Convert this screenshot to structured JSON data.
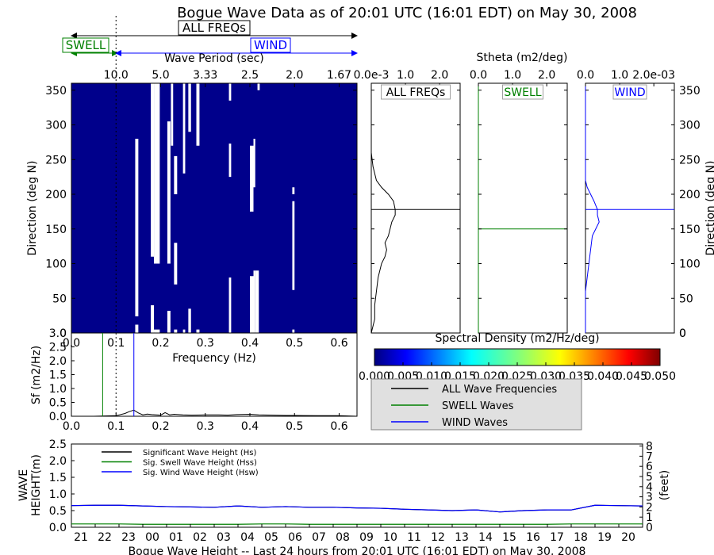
{
  "title": "Bogue Wave Data as of 20:01 UTC (16:01 EDT) on May 30, 2008",
  "top_annotations": {
    "all_freqs": "ALL FREQs",
    "swell": "SWELL",
    "wind": "WIND",
    "colors": {
      "all": "#000000",
      "swell": "#008000",
      "wind": "#0000ff"
    }
  },
  "colorbar": {
    "label": "Spectral Density (m2/Hz/deg)",
    "ticks": [
      "0.000",
      "0.005",
      "0.010",
      "0.015",
      "0.020",
      "0.025",
      "0.030",
      "0.035",
      "0.040",
      "0.045",
      "0.050"
    ],
    "range": [
      0.0,
      0.05
    ],
    "colormap": "jet"
  },
  "legend": {
    "items": [
      {
        "label": "ALL Wave Frequencies",
        "color": "#000000"
      },
      {
        "label": "SWELL Waves",
        "color": "#008000"
      },
      {
        "label": "WIND Waves",
        "color": "#0000ff"
      }
    ],
    "background": "#e0e0e0"
  },
  "chart_data": [
    {
      "name": "spectrum-heatmap",
      "type": "heatmap",
      "xlabel": "Frequency (Hz)",
      "ylabel": "Direction (deg N)",
      "top_xlabel": "Wave Period (sec)",
      "xlim": [
        0.0,
        0.64
      ],
      "ylim": [
        0,
        360
      ],
      "xticks": [
        0.0,
        0.1,
        0.2,
        0.3,
        0.4,
        0.5,
        0.6
      ],
      "xticklabels": [
        "0.0",
        "0.1",
        "0.2",
        "0.3",
        "0.4",
        "0.5",
        "0.6"
      ],
      "yticks": [
        0,
        50,
        100,
        150,
        200,
        250,
        300,
        350
      ],
      "top_ticks": [
        0.1,
        0.2,
        0.3,
        0.4,
        0.5,
        0.6
      ],
      "top_ticklabels": [
        "10.0",
        "5.0",
        "3.33",
        "2.5",
        "2.0",
        "1.67"
      ],
      "background_color": "#00008b",
      "separation_freq": 0.1,
      "gaps": [
        {
          "f": [
            0.143,
            0.15
          ],
          "d": [
            [
              0,
              12
            ],
            [
              24,
              280
            ]
          ]
        },
        {
          "f": [
            0.178,
            0.185
          ],
          "d": [
            [
              0,
              40
            ],
            [
              110,
              360
            ]
          ]
        },
        {
          "f": [
            0.185,
            0.198
          ],
          "d": [
            [
              0,
              5
            ],
            [
              100,
              360
            ]
          ]
        },
        {
          "f": [
            0.215,
            0.222
          ],
          "d": [
            [
              0,
              32
            ],
            [
              100,
              305
            ]
          ]
        },
        {
          "f": [
            0.223,
            0.228
          ],
          "d": [
            [
              270,
              360
            ]
          ]
        },
        {
          "f": [
            0.23,
            0.237
          ],
          "d": [
            [
              0,
              5
            ],
            [
              70,
              130
            ],
            [
              200,
              255
            ]
          ]
        },
        {
          "f": [
            0.25,
            0.255
          ],
          "d": [
            [
              0,
              5
            ],
            [
              230,
              360
            ]
          ]
        },
        {
          "f": [
            0.262,
            0.268
          ],
          "d": [
            [
              0,
              35
            ],
            [
              290,
              360
            ]
          ]
        },
        {
          "f": [
            0.28,
            0.287
          ],
          "d": [
            [
              0,
              5
            ],
            [
              270,
              360
            ]
          ]
        },
        {
          "f": [
            0.353,
            0.358
          ],
          "d": [
            [
              0,
              80
            ],
            [
              225,
              273
            ],
            [
              335,
              360
            ]
          ]
        },
        {
          "f": [
            0.4,
            0.408
          ],
          "d": [
            [
              0,
              82
            ],
            [
              175,
              270
            ]
          ]
        },
        {
          "f": [
            0.408,
            0.412
          ],
          "d": [
            [
              0,
              90
            ],
            [
              210,
              280
            ]
          ]
        },
        {
          "f": [
            0.412,
            0.42
          ],
          "d": [
            [
              0,
              90
            ]
          ]
        },
        {
          "f": [
            0.417,
            0.422
          ],
          "d": [
            [
              350,
              360
            ]
          ]
        },
        {
          "f": [
            0.495,
            0.5
          ],
          "d": [
            [
              0,
              5
            ],
            [
              62,
              190
            ],
            [
              200,
              210
            ]
          ]
        }
      ]
    },
    {
      "name": "all-freqs-direction",
      "type": "line",
      "title": "ALL FREQs",
      "xlim": [
        0.0,
        2.6
      ],
      "ylim": [
        0,
        360
      ],
      "xticklabels": [
        "0.0e-3",
        "1.0",
        "2.0"
      ],
      "xticks": [
        0.0,
        1.0,
        2.0
      ],
      "direction": [
        0,
        20,
        40,
        60,
        80,
        100,
        110,
        120,
        130,
        140,
        150,
        160,
        170,
        178,
        190,
        200,
        210,
        220,
        240,
        260,
        290,
        320,
        360
      ],
      "values": [
        0.0,
        0.1,
        0.1,
        0.15,
        0.2,
        0.3,
        0.4,
        0.45,
        0.4,
        0.5,
        0.55,
        0.6,
        0.7,
        0.7,
        0.65,
        0.5,
        0.3,
        0.15,
        0.05,
        0.0,
        0.0,
        0.0,
        0.0
      ],
      "mean_direction": 178,
      "color": "#000000"
    },
    {
      "name": "swell-direction",
      "type": "line",
      "title": "SWELL",
      "xlim": [
        0.0,
        2.6
      ],
      "ylim": [
        0,
        360
      ],
      "xticklabels": [
        "0.0",
        "1.0",
        "2.0"
      ],
      "xticks": [
        0.0,
        1.0,
        2.0
      ],
      "direction": [
        0,
        360
      ],
      "values": [
        0.0,
        0.0
      ],
      "mean_direction": 150,
      "color": "#008000"
    },
    {
      "name": "wind-direction",
      "type": "line",
      "title": "WIND",
      "xlim": [
        0.0,
        2.6
      ],
      "ylim": [
        0,
        360
      ],
      "xticklabels": [
        "0.0",
        "1.0",
        "2.0e-03"
      ],
      "xticks": [
        0.0,
        1.0,
        2.0
      ],
      "direction": [
        0,
        60,
        80,
        100,
        120,
        140,
        150,
        160,
        170,
        178,
        190,
        200,
        210,
        220,
        240,
        280,
        320,
        360
      ],
      "values": [
        0.0,
        0.0,
        0.05,
        0.1,
        0.15,
        0.2,
        0.3,
        0.4,
        0.35,
        0.35,
        0.25,
        0.15,
        0.05,
        0.0,
        0.0,
        0.0,
        0.0,
        0.0
      ],
      "mean_direction": 178,
      "color": "#0000ff"
    },
    {
      "name": "frequency-spectrum",
      "type": "line",
      "xlabel": "Frequency (Hz)",
      "ylabel": "Sf (m2/Hz)",
      "xlim": [
        0.0,
        0.64
      ],
      "ylim": [
        0.0,
        3.0
      ],
      "xticks": [
        0.0,
        0.1,
        0.2,
        0.3,
        0.4,
        0.5,
        0.6
      ],
      "xticklabels": [
        "0.0",
        "0.1",
        "0.2",
        "0.3",
        "0.4",
        "0.5",
        "0.6"
      ],
      "yticks": [
        0.0,
        0.5,
        1.0,
        1.5,
        2.0,
        2.5,
        3.0
      ],
      "yticklabels": [
        "0.0",
        "0.5",
        "1.0",
        "1.5",
        "2.0",
        "2.5",
        "3.0"
      ],
      "x": [
        0.0,
        0.05,
        0.1,
        0.12,
        0.13,
        0.14,
        0.15,
        0.16,
        0.17,
        0.18,
        0.19,
        0.2,
        0.21,
        0.22,
        0.23,
        0.25,
        0.27,
        0.3,
        0.33,
        0.35,
        0.37,
        0.4,
        0.42,
        0.45,
        0.48,
        0.5,
        0.55,
        0.6,
        0.64
      ],
      "values": [
        0.0,
        0.0,
        0.02,
        0.1,
        0.17,
        0.22,
        0.12,
        0.05,
        0.08,
        0.06,
        0.05,
        0.04,
        0.13,
        0.05,
        0.07,
        0.05,
        0.04,
        0.05,
        0.05,
        0.04,
        0.06,
        0.07,
        0.05,
        0.04,
        0.03,
        0.03,
        0.02,
        0.02,
        0.0
      ],
      "swell_cutoff": 0.07,
      "wind_cutoff": 0.14,
      "separation_freq": 0.1,
      "color": "#000000"
    },
    {
      "name": "wave-height-timeseries",
      "type": "line",
      "xlabel": "Bogue Wave Height -- Last 24 hours from 20:01 UTC (16:01 EDT) on May 30, 2008",
      "ylabel": "WAVE HEIGHT(m)",
      "ylabel_right": "(feet)",
      "xlim": [
        0,
        24
      ],
      "ylim": [
        0.0,
        2.5
      ],
      "yticks": [
        0.0,
        0.5,
        1.0,
        1.5,
        2.0,
        2.5
      ],
      "yticklabels": [
        "0.0",
        "0.5",
        "1.0",
        "1.5",
        "2.0",
        "2.5"
      ],
      "right_ticks": [
        "0",
        "1",
        "2",
        "3",
        "4",
        "5",
        "6",
        "7",
        "8"
      ],
      "hour_labels": [
        "21",
        "22",
        "23",
        "00",
        "01",
        "02",
        "03",
        "04",
        "05",
        "06",
        "07",
        "08",
        "09",
        "10",
        "11",
        "12",
        "13",
        "14",
        "15",
        "16",
        "17",
        "18",
        "19",
        "20"
      ],
      "series": [
        {
          "name": "Significant Wave Height (Hs)",
          "color": "#000000",
          "values": [
            0.65,
            0.66,
            0.66,
            0.64,
            0.62,
            0.61,
            0.6,
            0.64,
            0.6,
            0.62,
            0.6,
            0.6,
            0.58,
            0.57,
            0.54,
            0.52,
            0.5,
            0.52,
            0.46,
            0.5,
            0.52,
            0.52,
            0.66,
            0.65,
            0.64
          ]
        },
        {
          "name": "Sig. Swell Wave Height (Hss)",
          "color": "#008000",
          "values": [
            0.1,
            0.1,
            0.1,
            0.09,
            0.09,
            0.09,
            0.09,
            0.09,
            0.1,
            0.1,
            0.09,
            0.09,
            0.09,
            0.09,
            0.09,
            0.09,
            0.09,
            0.09,
            0.09,
            0.09,
            0.09,
            0.1,
            0.1,
            0.1,
            0.1
          ]
        },
        {
          "name": "Sig. Wind Wave Height (Hsw)",
          "color": "#0000ff",
          "values": [
            0.65,
            0.66,
            0.66,
            0.64,
            0.62,
            0.61,
            0.6,
            0.64,
            0.6,
            0.62,
            0.6,
            0.6,
            0.58,
            0.57,
            0.54,
            0.52,
            0.5,
            0.52,
            0.46,
            0.5,
            0.52,
            0.52,
            0.66,
            0.65,
            0.64
          ]
        }
      ]
    }
  ]
}
